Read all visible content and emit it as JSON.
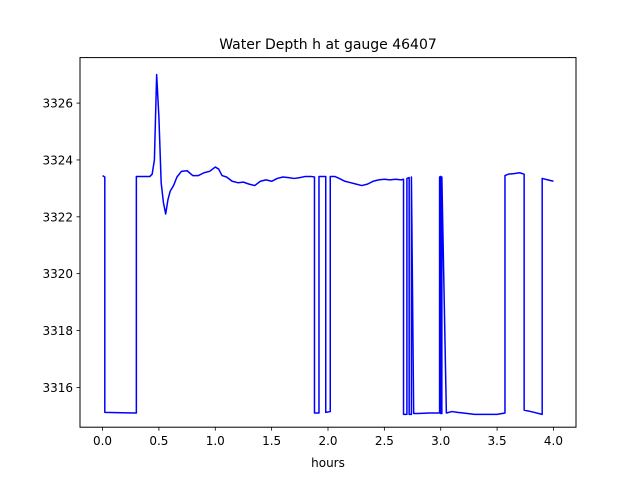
{
  "chart_data": {
    "type": "line",
    "title": "Water Depth h at gauge 46407",
    "xlabel": "hours",
    "ylabel": "",
    "xlim": [
      -0.2,
      4.2
    ],
    "ylim": [
      3314.6,
      3327.6
    ],
    "xticks": [
      0.0,
      0.5,
      1.0,
      1.5,
      2.0,
      2.5,
      3.0,
      3.5,
      4.0
    ],
    "xtick_labels": [
      "0.0",
      "0.5",
      "1.0",
      "1.5",
      "2.0",
      "2.5",
      "3.0",
      "3.5",
      "4.0"
    ],
    "yticks": [
      3316,
      3318,
      3320,
      3322,
      3324,
      3326
    ],
    "ytick_labels": [
      "3316",
      "3318",
      "3320",
      "3322",
      "3324",
      "3326"
    ],
    "grid": false,
    "series": [
      {
        "color": "#0000ff",
        "x": [
          0.0,
          0.02,
          0.02,
          0.3,
          0.3,
          0.42,
          0.44,
          0.46,
          0.48,
          0.5,
          0.52,
          0.54,
          0.56,
          0.58,
          0.6,
          0.63,
          0.66,
          0.7,
          0.75,
          0.8,
          0.85,
          0.9,
          0.95,
          1.0,
          1.03,
          1.06,
          1.1,
          1.15,
          1.2,
          1.25,
          1.3,
          1.35,
          1.4,
          1.45,
          1.5,
          1.55,
          1.6,
          1.65,
          1.7,
          1.75,
          1.8,
          1.85,
          1.88,
          1.88,
          1.92,
          1.92,
          1.98,
          1.98,
          2.02,
          2.02,
          2.06,
          2.06,
          2.1,
          2.15,
          2.2,
          2.25,
          2.3,
          2.35,
          2.4,
          2.45,
          2.5,
          2.55,
          2.6,
          2.65,
          2.67,
          2.67,
          2.7,
          2.7,
          2.72,
          2.72,
          2.74,
          2.74,
          2.76,
          2.8,
          2.9,
          2.99,
          2.99,
          3.0,
          3.0,
          3.01,
          3.01,
          3.05,
          3.1,
          3.15,
          3.2,
          3.3,
          3.4,
          3.5,
          3.57,
          3.57,
          3.6,
          3.65,
          3.7,
          3.74,
          3.74,
          3.8,
          3.9,
          3.9,
          3.95,
          4.0
        ],
        "y": [
          3323.45,
          3323.4,
          3315.12,
          3315.1,
          3323.42,
          3323.42,
          3323.5,
          3324.0,
          3327.0,
          3325.5,
          3323.2,
          3322.5,
          3322.1,
          3322.6,
          3322.9,
          3323.1,
          3323.4,
          3323.6,
          3323.62,
          3323.45,
          3323.45,
          3323.55,
          3323.6,
          3323.75,
          3323.68,
          3323.45,
          3323.4,
          3323.25,
          3323.2,
          3323.22,
          3323.15,
          3323.1,
          3323.25,
          3323.3,
          3323.25,
          3323.35,
          3323.4,
          3323.38,
          3323.35,
          3323.38,
          3323.42,
          3323.42,
          3323.4,
          3315.1,
          3315.1,
          3323.42,
          3323.42,
          3315.12,
          3315.15,
          3323.42,
          3323.42,
          3323.42,
          3323.35,
          3323.25,
          3323.2,
          3323.15,
          3323.1,
          3323.15,
          3323.25,
          3323.3,
          3323.32,
          3323.3,
          3323.32,
          3323.3,
          3323.32,
          3315.05,
          3315.05,
          3323.35,
          3323.38,
          3315.05,
          3315.05,
          3323.4,
          3315.08,
          3315.08,
          3315.1,
          3315.1,
          3323.4,
          3323.42,
          3315.08,
          3315.08,
          3323.4,
          3315.1,
          3315.15,
          3315.12,
          3315.1,
          3315.05,
          3315.05,
          3315.05,
          3315.1,
          3323.45,
          3323.5,
          3323.52,
          3323.55,
          3323.5,
          3315.2,
          3315.15,
          3315.05,
          3323.35,
          3323.3,
          3323.25
        ]
      }
    ]
  }
}
